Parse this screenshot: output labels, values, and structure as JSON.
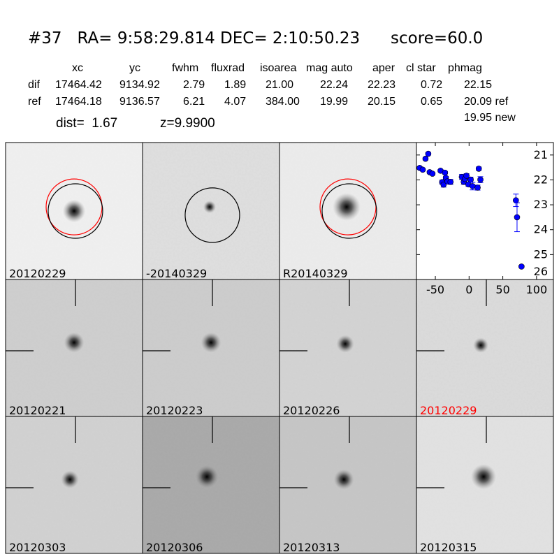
{
  "header": {
    "title": "#37   RA= 9:58:29.814 DEC= 2:10:50.23      score=60.0",
    "columns": [
      "xc",
      "yc",
      "fwhm",
      "fluxrad",
      "isoarea",
      "mag auto",
      "aper",
      "cl star",
      "phmag"
    ],
    "rows": [
      {
        "label": "dif",
        "values": [
          "17464.42",
          "9134.92",
          "2.79",
          "1.89",
          "21.00",
          "22.24",
          "22.23",
          "0.72",
          "22.15"
        ]
      },
      {
        "label": "ref",
        "values": [
          "17464.18",
          "9136.57",
          "6.21",
          "4.07",
          "384.00",
          "19.99",
          "20.15",
          "0.65",
          "20.09 ref"
        ]
      }
    ],
    "phmag_new": "19.95 new",
    "dist": "dist=  1.67",
    "z": "z=9.9900"
  },
  "panels": [
    {
      "label": "20120229",
      "color": "#000000"
    },
    {
      "label": "-20140329",
      "color": "#000000"
    },
    {
      "label": "R20140329",
      "color": "#000000"
    },
    {
      "label": "20120221",
      "color": "#000000"
    },
    {
      "label": "20120223",
      "color": "#000000"
    },
    {
      "label": "20120226",
      "color": "#000000"
    },
    {
      "label": "20120229",
      "color": "#ff0000"
    },
    {
      "label": "20120303",
      "color": "#000000"
    },
    {
      "label": "20120306",
      "color": "#000000"
    },
    {
      "label": "20120313",
      "color": "#000000"
    },
    {
      "label": "20120315",
      "color": "#000000"
    }
  ],
  "chart_data": {
    "type": "scatter",
    "title": "",
    "xlabel": "",
    "ylabel": "",
    "xlim": [
      -78,
      125
    ],
    "ylim": [
      26,
      20.5
    ],
    "y_inverted": true,
    "xticks": [
      "-50",
      "0",
      "50",
      "100"
    ],
    "xtick_values": [
      -50,
      0,
      50,
      100
    ],
    "yticks": [
      "21",
      "22",
      "23",
      "24",
      "25",
      "26"
    ],
    "ytick_values": [
      21,
      22,
      23,
      24,
      25,
      26
    ],
    "marker_color": "#0000ff",
    "points": [
      {
        "x": -60.5,
        "y": 20.95,
        "err": 0.05
      },
      {
        "x": -64.6,
        "y": 21.15,
        "err": 0.05
      },
      {
        "x": -73.2,
        "y": 21.52,
        "err": 0.05
      },
      {
        "x": -68.7,
        "y": 21.59,
        "err": 0.05
      },
      {
        "x": -58.4,
        "y": 21.69,
        "err": 0.05
      },
      {
        "x": -54.3,
        "y": 21.75,
        "err": 0.05
      },
      {
        "x": -42.3,
        "y": 21.63,
        "err": 0.05
      },
      {
        "x": -35.7,
        "y": 21.71,
        "err": 0.05
      },
      {
        "x": -34.4,
        "y": 21.92,
        "err": 0.06
      },
      {
        "x": -39.9,
        "y": 22.09,
        "err": 0.08
      },
      {
        "x": -37.8,
        "y": 22.19,
        "err": 0.1
      },
      {
        "x": -32.0,
        "y": 22.06,
        "err": 0.06
      },
      {
        "x": -27.5,
        "y": 22.08,
        "err": 0.1
      },
      {
        "x": -10.7,
        "y": 21.88,
        "err": 0.1
      },
      {
        "x": -7.9,
        "y": 22.08,
        "err": 0.1
      },
      {
        "x": -6.2,
        "y": 21.96,
        "err": 0.08
      },
      {
        "x": -3.8,
        "y": 21.83,
        "err": 0.08
      },
      {
        "x": -1.0,
        "y": 22.18,
        "err": 0.08
      },
      {
        "x": 2.4,
        "y": 21.99,
        "err": 0.1
      },
      {
        "x": 5.2,
        "y": 22.25,
        "err": 0.15
      },
      {
        "x": 12.7,
        "y": 22.31,
        "err": 0.1
      },
      {
        "x": 14.4,
        "y": 21.55,
        "err": 0.07
      },
      {
        "x": 16.8,
        "y": 21.99,
        "err": 0.12
      },
      {
        "x": 69.4,
        "y": 22.82,
        "err": 0.25
      },
      {
        "x": 71.1,
        "y": 23.5,
        "err": 0.58
      },
      {
        "x": 77.7,
        "y": 25.48,
        "err": 0.05
      }
    ]
  }
}
